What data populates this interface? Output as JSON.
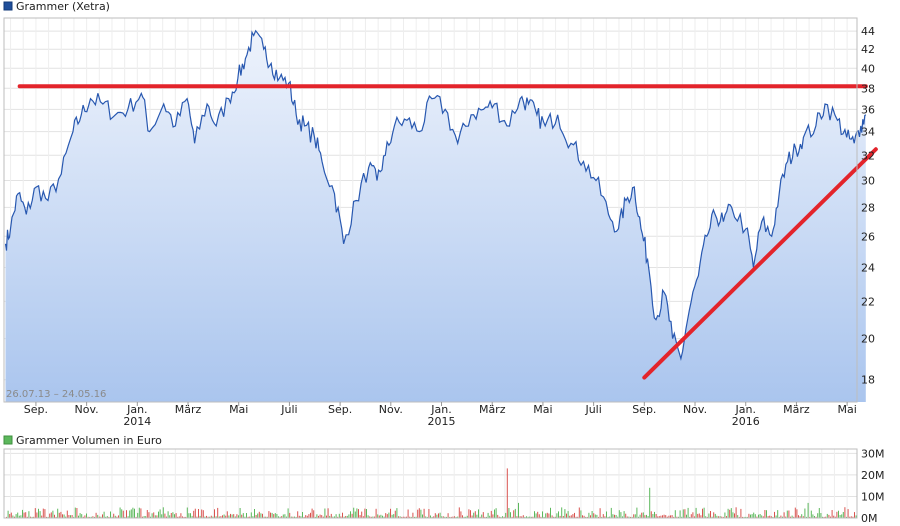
{
  "chart_data": [
    {
      "type": "line",
      "legend": "Grammer (Xetra)",
      "date_range": "26.07.13 – 24.05.16",
      "series_color": "#2858b0",
      "ylim": [
        17,
        45.5
      ],
      "yscale": "log",
      "yticks": [
        18,
        20,
        22,
        24,
        26,
        28,
        30,
        32,
        34,
        36,
        38,
        40,
        42,
        44
      ],
      "grid": true,
      "x_labels": [
        {
          "m": 1.2,
          "label": "Sep.",
          "year": ""
        },
        {
          "m": 3.2,
          "label": "Nov.",
          "year": ""
        },
        {
          "m": 5.2,
          "label": "Jan.",
          "year": "2014"
        },
        {
          "m": 7.2,
          "label": "März",
          "year": ""
        },
        {
          "m": 9.2,
          "label": "Mai",
          "year": ""
        },
        {
          "m": 11.2,
          "label": "Juli",
          "year": ""
        },
        {
          "m": 13.2,
          "label": "Sep.",
          "year": ""
        },
        {
          "m": 15.2,
          "label": "Nov.",
          "year": ""
        },
        {
          "m": 17.2,
          "label": "Jan.",
          "year": "2015"
        },
        {
          "m": 19.2,
          "label": "März",
          "year": ""
        },
        {
          "m": 21.2,
          "label": "Mai",
          "year": ""
        },
        {
          "m": 23.2,
          "label": "Juli",
          "year": ""
        },
        {
          "m": 25.2,
          "label": "Sep.",
          "year": ""
        },
        {
          "m": 27.2,
          "label": "Nov.",
          "year": ""
        },
        {
          "m": 29.2,
          "label": "Jan.",
          "year": "2016"
        },
        {
          "m": 31.2,
          "label": "März",
          "year": ""
        },
        {
          "m": 33.2,
          "label": "Mai",
          "year": ""
        }
      ],
      "x": [
        "2013-07-26",
        "2013-08-01",
        "2013-08-10",
        "2013-08-20",
        "2013-09-01",
        "2013-09-15",
        "2013-10-01",
        "2013-10-15",
        "2013-10-25",
        "2013-11-05",
        "2013-11-20",
        "2013-12-05",
        "2013-12-20",
        "2014-01-05",
        "2014-01-15",
        "2014-02-01",
        "2014-02-15",
        "2014-03-01",
        "2014-03-10",
        "2014-03-25",
        "2014-04-05",
        "2014-04-20",
        "2014-05-01",
        "2014-05-10",
        "2014-05-20",
        "2014-06-01",
        "2014-06-10",
        "2014-06-20",
        "2014-07-01",
        "2014-07-10",
        "2014-07-20",
        "2014-08-01",
        "2014-08-10",
        "2014-08-25",
        "2014-09-05",
        "2014-09-20",
        "2014-10-05",
        "2014-10-15",
        "2014-10-25",
        "2014-11-05",
        "2014-11-20",
        "2014-12-05",
        "2014-12-20",
        "2015-01-05",
        "2015-01-20",
        "2015-02-05",
        "2015-02-20",
        "2015-03-05",
        "2015-03-20",
        "2015-04-05",
        "2015-04-15",
        "2015-04-25",
        "2015-05-05",
        "2015-05-20",
        "2015-06-05",
        "2015-06-20",
        "2015-07-05",
        "2015-07-20",
        "2015-08-01",
        "2015-08-10",
        "2015-08-20",
        "2015-08-28",
        "2015-09-05",
        "2015-09-15",
        "2015-09-25",
        "2015-10-05",
        "2015-10-15",
        "2015-10-25",
        "2015-11-05",
        "2015-11-15",
        "2015-11-25",
        "2015-12-05",
        "2015-12-15",
        "2016-01-01",
        "2016-01-10",
        "2016-01-20",
        "2016-02-01",
        "2016-02-10",
        "2016-02-20",
        "2016-03-01",
        "2016-03-10",
        "2016-03-25",
        "2016-04-05",
        "2016-04-20",
        "2016-05-01",
        "2016-05-10",
        "2016-05-18",
        "2016-05-24"
      ],
      "values": [
        25.5,
        26.5,
        29.0,
        27.5,
        29.5,
        28.5,
        30.5,
        34.0,
        35.5,
        37.0,
        36.5,
        35.5,
        36.0,
        37.5,
        34.0,
        36.5,
        34.5,
        37.0,
        33.0,
        36.5,
        34.5,
        37.0,
        39.0,
        41.0,
        43.5,
        42.0,
        40.5,
        39.0,
        38.5,
        35.5,
        34.5,
        33.5,
        31.5,
        29.0,
        25.5,
        28.5,
        31.0,
        30.0,
        32.0,
        34.5,
        35.0,
        34.0,
        37.0,
        36.0,
        33.0,
        35.5,
        36.0,
        36.5,
        34.5,
        37.0,
        36.5,
        35.5,
        34.5,
        35.5,
        33.0,
        31.5,
        30.0,
        27.5,
        26.5,
        28.5,
        29.5,
        26.5,
        24.5,
        21.0,
        22.5,
        20.0,
        19.0,
        21.5,
        23.5,
        26.0,
        27.5,
        27.0,
        28.0,
        26.5,
        24.0,
        27.0,
        26.0,
        29.0,
        31.5,
        32.5,
        33.5,
        34.5,
        36.5,
        35.0,
        33.5,
        33.0,
        34.5,
        35.5
      ],
      "annotations": [
        {
          "type": "horizontal_line",
          "y": 38.2,
          "x_start": "2013-08-12",
          "x_end": "2016-05-24",
          "color": "#e3242b"
        },
        {
          "type": "trend_line",
          "from": {
            "x": "2015-09-01",
            "y": 18.1
          },
          "to": {
            "x": "2016-05-24",
            "y": 32.5
          },
          "color": "#e3242b"
        }
      ]
    },
    {
      "type": "bar",
      "legend": "Grammer Volumen in Euro",
      "legend_color": "#5cb85c",
      "ylim": [
        0,
        32
      ],
      "ytick_values": [
        0,
        10,
        20,
        30
      ],
      "ytick_labels": [
        "0M",
        "10M",
        "20M",
        "30M"
      ],
      "up_color": "#5cb85c",
      "down_color": "#d9534f",
      "typical_volume_range_m": [
        0.5,
        5
      ],
      "spikes": [
        {
          "x": "2013-11-01",
          "value": 7
        },
        {
          "x": "2014-02-12",
          "value": 5
        },
        {
          "x": "2014-05-06",
          "value": 6
        },
        {
          "x": "2014-10-20",
          "value": 5
        },
        {
          "x": "2015-03-20",
          "value": 23
        },
        {
          "x": "2015-04-02",
          "value": 7
        },
        {
          "x": "2015-06-10",
          "value": 5
        },
        {
          "x": "2015-09-07",
          "value": 14
        },
        {
          "x": "2016-03-15",
          "value": 7
        },
        {
          "x": "2016-04-28",
          "value": 5
        }
      ]
    }
  ]
}
